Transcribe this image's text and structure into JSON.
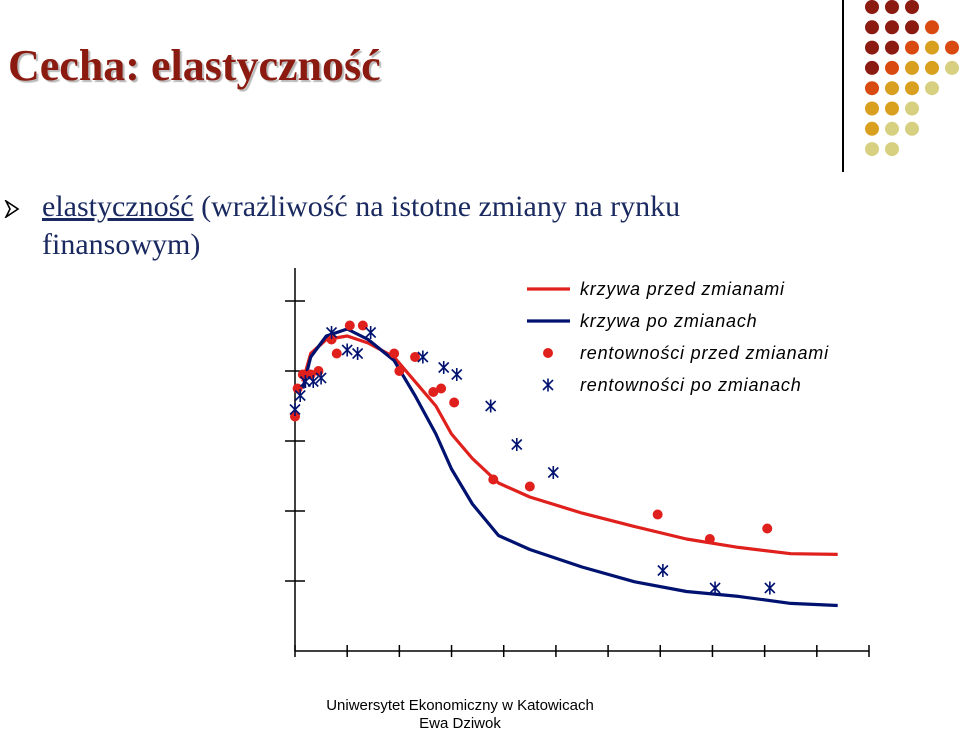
{
  "title": "Cecha: elastyczność",
  "bullet": {
    "term": "elastyczność",
    "rest": " (wrażliwość na istotne zmiany na rynku finansowym)"
  },
  "footer": {
    "line1": "Uniwersytet Ekonomiczny w Katowicach",
    "line2": "Ewa Dziwok"
  },
  "colors": {
    "title": "#8b1a10",
    "text": "#1a2a60",
    "curve_before": "#e0201c",
    "curve_after": "#001270",
    "dots": [
      "#8b1a10",
      "#d94a10",
      "#d9a020",
      "#d6d080"
    ]
  },
  "chart_data": {
    "type": "line",
    "x_ticks": 12,
    "y_ticks": 5,
    "xlim": [
      0,
      11
    ],
    "ylim": [
      0,
      5
    ],
    "series": [
      {
        "name": "krzywa przed zmianami",
        "kind": "line",
        "color": "#e0201c",
        "x": [
          0.15,
          0.3,
          0.6,
          1.0,
          1.4,
          1.9,
          2.3,
          2.7,
          3.0,
          3.4,
          3.9,
          4.5,
          5.5,
          6.5,
          7.5,
          8.5,
          9.5,
          10.4
        ],
        "y": [
          3.85,
          4.25,
          4.45,
          4.5,
          4.4,
          4.2,
          3.85,
          3.5,
          3.1,
          2.75,
          2.4,
          2.2,
          1.97,
          1.78,
          1.6,
          1.48,
          1.39,
          1.38
        ]
      },
      {
        "name": "krzywa po zmianach",
        "kind": "line",
        "color": "#001270",
        "x": [
          0.15,
          0.3,
          0.6,
          1.0,
          1.4,
          1.9,
          2.3,
          2.7,
          3.0,
          3.4,
          3.9,
          4.5,
          5.5,
          6.5,
          7.5,
          8.5,
          9.5,
          10.4
        ],
        "y": [
          3.75,
          4.2,
          4.5,
          4.6,
          4.45,
          4.15,
          3.65,
          3.1,
          2.6,
          2.1,
          1.65,
          1.45,
          1.2,
          0.99,
          0.85,
          0.78,
          0.68,
          0.65
        ]
      },
      {
        "name": "rentowności przed zmianami",
        "kind": "dots",
        "color": "#e0201c",
        "x": [
          0,
          0.05,
          0.15,
          0.3,
          0.45,
          0.7,
          0.8,
          1.05,
          1.3,
          1.9,
          2.0,
          2.3,
          2.65,
          2.8,
          3.05,
          3.8,
          4.5,
          6.95,
          7.95,
          9.05
        ],
        "y": [
          3.35,
          3.75,
          3.95,
          3.95,
          4.0,
          4.45,
          4.25,
          4.65,
          4.65,
          4.25,
          4.0,
          4.2,
          3.7,
          3.75,
          3.55,
          2.45,
          2.35,
          1.95,
          1.6,
          1.75
        ]
      },
      {
        "name": "rentowności po zmianach",
        "kind": "stars",
        "color": "#001270",
        "x": [
          0,
          0.1,
          0.2,
          0.35,
          0.5,
          0.7,
          1.0,
          1.2,
          1.45,
          2.45,
          2.85,
          3.1,
          3.75,
          4.25,
          4.95,
          7.05,
          8.05,
          9.1
        ],
        "y": [
          3.45,
          3.65,
          3.85,
          3.85,
          3.9,
          4.55,
          4.3,
          4.25,
          4.55,
          4.2,
          4.05,
          3.95,
          3.5,
          2.95,
          2.55,
          1.15,
          0.9,
          0.9
        ]
      }
    ]
  }
}
